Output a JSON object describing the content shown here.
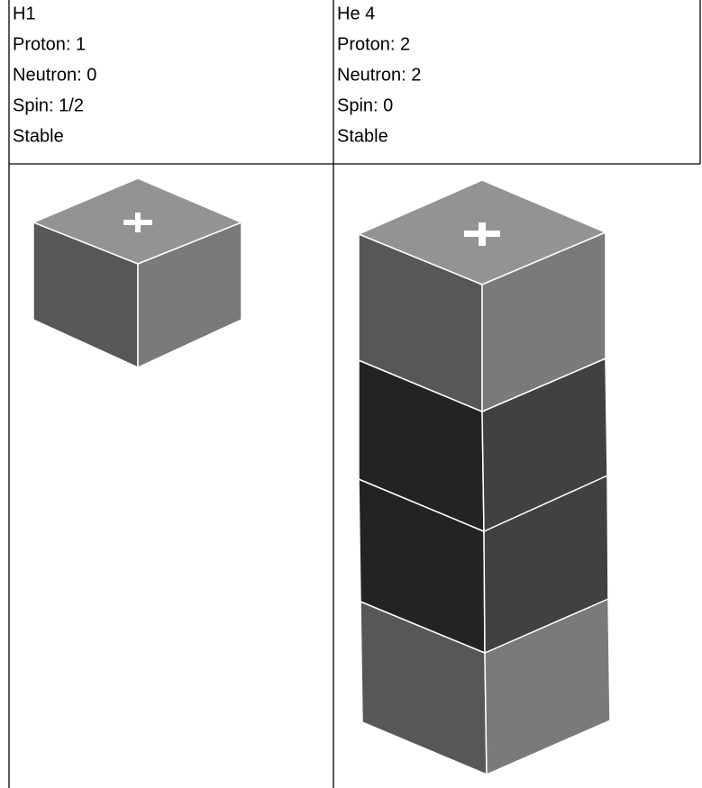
{
  "table": {
    "rows": [
      [
        [
          "H1",
          "Proton: 1",
          "Neutron: 0",
          "Spin: 1/2",
          "Stable"
        ],
        [
          "He 4",
          "Proton: 2",
          "Neutron: 2",
          "Spin: 0",
          "Stable"
        ]
      ]
    ]
  }
}
